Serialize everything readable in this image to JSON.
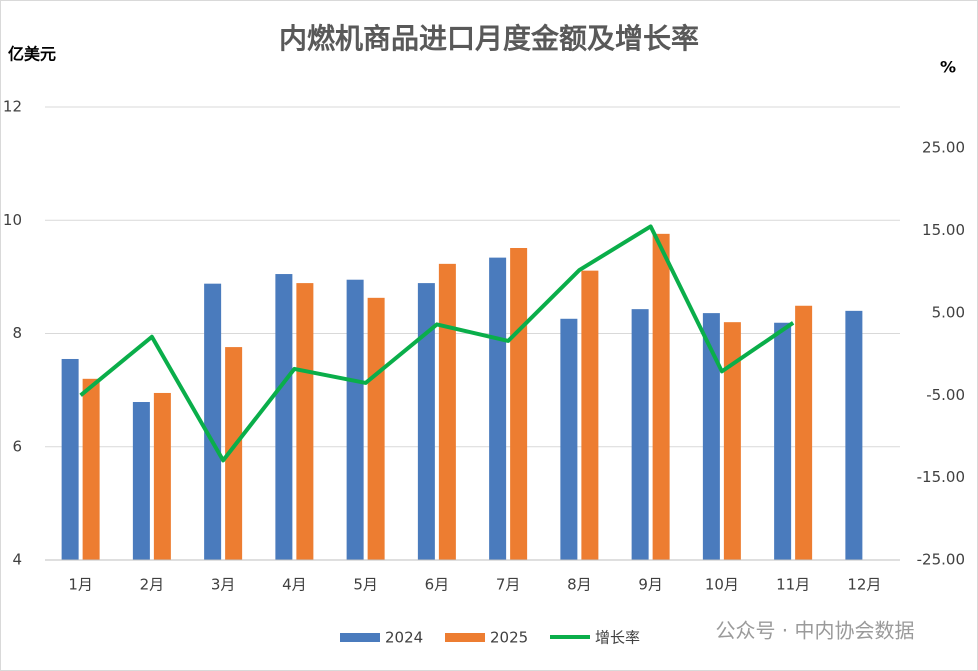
{
  "chart_data": {
    "type": "bar",
    "title": "内燃机商品进口月度金额及增长率",
    "y_label": "亿美元",
    "y2_label": "%",
    "categories": [
      "1月",
      "2月",
      "3月",
      "4月",
      "5月",
      "6月",
      "7月",
      "8月",
      "9月",
      "10月",
      "11月",
      "12月"
    ],
    "series": [
      {
        "name": "2024",
        "type": "bar",
        "color": "#4a7bbd",
        "values": [
          7.55,
          6.79,
          8.88,
          9.05,
          8.95,
          8.89,
          9.34,
          8.26,
          8.43,
          8.36,
          8.19,
          8.4
        ]
      },
      {
        "name": "2025",
        "type": "bar",
        "color": "#ed7d31",
        "values": [
          7.2,
          6.95,
          7.76,
          8.89,
          8.63,
          9.23,
          9.51,
          9.11,
          9.76,
          8.2,
          8.49,
          null
        ]
      },
      {
        "name": "增长率",
        "type": "line",
        "axis": "y2",
        "color": "#0aae4a",
        "values": [
          -5.0,
          2.1,
          -12.9,
          -1.8,
          -3.5,
          3.6,
          1.6,
          10.2,
          15.5,
          -2.1,
          3.8,
          null
        ]
      }
    ],
    "ylim": [
      4,
      12
    ],
    "yticks": [
      4,
      6,
      8,
      10,
      12
    ],
    "y2lim": [
      -25,
      30
    ],
    "y2ticks": [
      {
        "value": -25,
        "label": "-25.00"
      },
      {
        "value": -15,
        "label": "-15.00"
      },
      {
        "value": -5,
        "label": "-5.00"
      },
      {
        "value": 5,
        "label": "5.00"
      },
      {
        "value": 15,
        "label": "15.00"
      },
      {
        "value": 25,
        "label": "25.00"
      }
    ],
    "grid": true,
    "legend": "bottom",
    "watermark": "公众号 · 中内协会数据"
  }
}
